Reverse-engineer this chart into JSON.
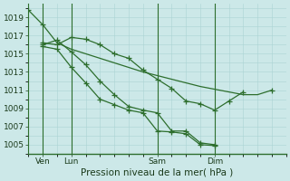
{
  "bg_color": "#cce8e8",
  "grid_color": "#aad4d4",
  "line_color": "#2d6e2d",
  "title": "Pression niveau de la mer( hPa )",
  "ylim": [
    1004.0,
    1020.5
  ],
  "yticks": [
    1005,
    1007,
    1009,
    1011,
    1013,
    1015,
    1017,
    1019
  ],
  "xlabel_fontsize": 7.5,
  "tick_fontsize": 6.5,
  "xtick_labels": [
    "Ven",
    "Lun",
    "Sam",
    "Dim"
  ],
  "xtick_positions": [
    1,
    3,
    9,
    13
  ],
  "vline_positions": [
    1,
    3,
    9,
    13
  ],
  "xlim": [
    0,
    18
  ],
  "series": [
    {
      "x": [
        0,
        1,
        2,
        3,
        4,
        5,
        6,
        7,
        8,
        9,
        10,
        11,
        12,
        13,
        14,
        15,
        16,
        17
      ],
      "y": [
        1019.8,
        1018.2,
        1016.2,
        1015.5,
        1015.0,
        1014.5,
        1014.0,
        1013.5,
        1013.0,
        1012.6,
        1012.2,
        1011.8,
        1011.4,
        1011.1,
        1010.8,
        1010.5,
        1010.5,
        1011.0
      ],
      "markers": false
    },
    {
      "x": [
        1,
        2,
        3,
        4,
        5,
        6,
        7,
        8,
        9,
        10,
        11,
        12,
        13,
        14,
        15
      ],
      "y": [
        1016.2,
        1016.0,
        1016.8,
        1016.6,
        1016.0,
        1015.0,
        1014.5,
        1013.2,
        1012.2,
        1011.2,
        1009.8,
        1009.5,
        1008.8,
        1009.8,
        1010.8
      ],
      "markers": true
    },
    {
      "x": [
        1,
        2,
        3,
        4,
        5,
        6,
        7,
        8,
        9,
        10,
        11,
        12,
        13
      ],
      "y": [
        1016.0,
        1016.5,
        1015.2,
        1013.8,
        1012.0,
        1010.5,
        1009.2,
        1008.8,
        1008.5,
        1006.5,
        1006.5,
        1005.2,
        1005.0
      ],
      "markers": true
    },
    {
      "x": [
        1,
        2,
        3,
        4,
        5,
        6,
        7,
        8,
        9,
        10,
        11,
        12,
        13
      ],
      "y": [
        1015.8,
        1015.5,
        1013.5,
        1011.8,
        1010.0,
        1009.4,
        1008.8,
        1008.5,
        1006.5,
        1006.4,
        1006.2,
        1005.0,
        1004.9
      ],
      "markers": true
    }
  ]
}
